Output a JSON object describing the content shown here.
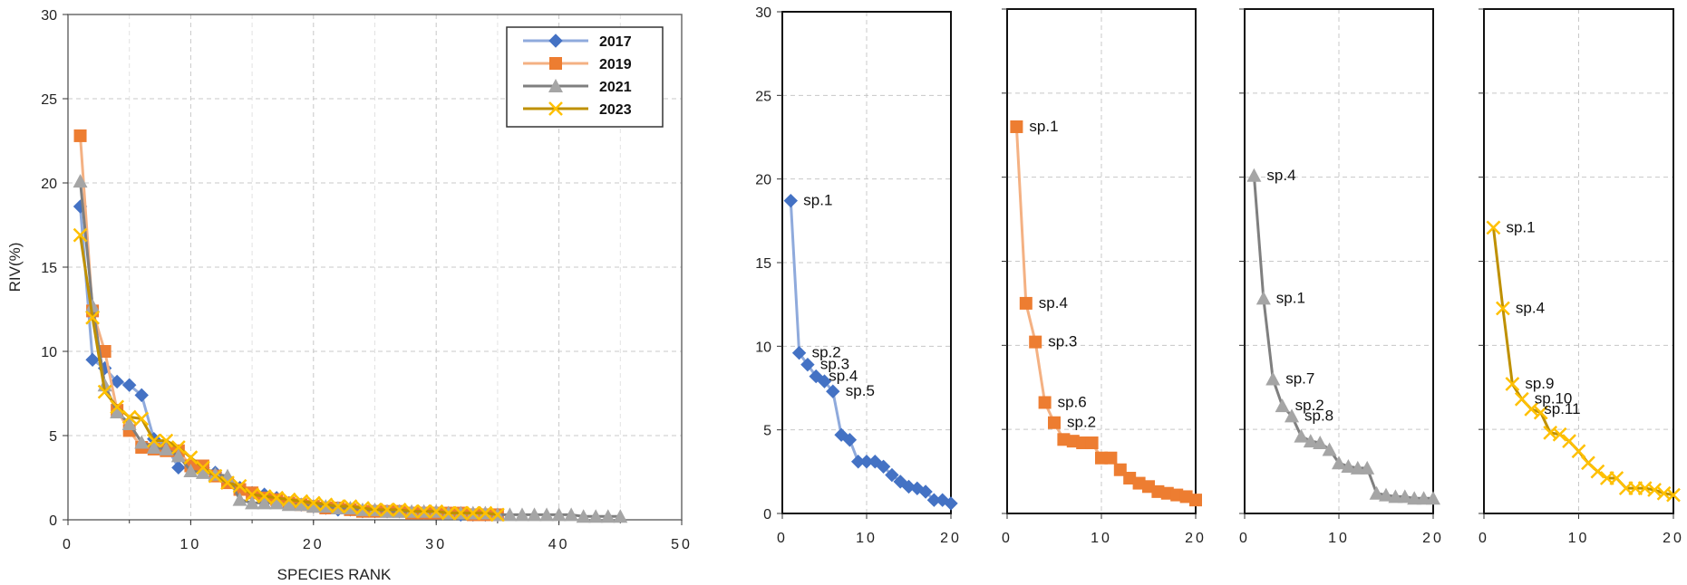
{
  "chart_data": [
    {
      "type": "line",
      "title": "",
      "xlabel": "SPECIES RANK",
      "ylabel": "RIV(%)",
      "xlim": [
        0,
        50
      ],
      "ylim": [
        0,
        30
      ],
      "xticks": [
        0,
        10,
        20,
        30,
        40,
        50
      ],
      "yticks": [
        0,
        5,
        10,
        15,
        20,
        25,
        30
      ],
      "grid": true,
      "legend": "top-right",
      "series": [
        {
          "name": "2017",
          "marker": "diamond",
          "color": "#4472C4",
          "line_color": "#8FAADC",
          "x": [
            1,
            2,
            3,
            4,
            5,
            6,
            7,
            8,
            9,
            10,
            11,
            12,
            13,
            14,
            15,
            16,
            17,
            18,
            19,
            20,
            21,
            22,
            23,
            24,
            25,
            26,
            27,
            28,
            29,
            30,
            31,
            32,
            33,
            34,
            35
          ],
          "y": [
            18.6,
            9.5,
            9.0,
            8.2,
            8.0,
            7.4,
            4.8,
            4.4,
            3.1,
            3.1,
            3.1,
            2.8,
            2.4,
            1.9,
            1.6,
            1.5,
            1.3,
            1.0,
            0.9,
            0.8,
            0.7,
            0.6,
            0.6,
            0.5,
            0.5,
            0.5,
            0.5,
            0.4,
            0.4,
            0.4,
            0.4,
            0.3,
            0.3,
            0.3,
            0.3
          ]
        },
        {
          "name": "2019",
          "marker": "square",
          "color": "#ED7D31",
          "line_color": "#F4B183",
          "x": [
            1,
            2,
            3,
            4,
            5,
            6,
            7,
            8,
            9,
            10,
            11,
            12,
            13,
            14,
            15,
            16,
            17,
            18,
            19,
            20,
            21,
            22,
            23,
            24,
            25,
            26,
            27,
            28,
            29,
            30,
            31,
            32,
            33,
            34,
            35
          ],
          "y": [
            22.8,
            12.4,
            10.0,
            6.5,
            5.3,
            4.3,
            4.2,
            4.1,
            4.1,
            3.2,
            3.2,
            2.6,
            2.2,
            1.8,
            1.6,
            1.3,
            1.2,
            1.0,
            0.9,
            0.8,
            0.7,
            0.7,
            0.6,
            0.5,
            0.5,
            0.5,
            0.5,
            0.4,
            0.4,
            0.4,
            0.4,
            0.4,
            0.3,
            0.3,
            0.3
          ]
        },
        {
          "name": "2021",
          "marker": "triangle",
          "color": "#A5A5A5",
          "line_color": "#7F7F7F",
          "x": [
            1,
            2,
            3,
            4,
            5,
            6,
            7,
            8,
            9,
            10,
            11,
            12,
            13,
            14,
            15,
            16,
            17,
            18,
            19,
            20,
            21,
            22,
            23,
            24,
            25,
            26,
            27,
            28,
            29,
            30,
            31,
            32,
            33,
            34,
            35,
            36,
            37,
            38,
            39,
            40,
            41,
            42,
            43,
            44,
            45
          ],
          "y": [
            20.1,
            12.7,
            8.0,
            6.4,
            5.7,
            4.6,
            4.3,
            4.2,
            3.8,
            2.9,
            2.8,
            2.7,
            2.6,
            1.2,
            1.0,
            1.0,
            1.0,
            0.9,
            0.9,
            0.8,
            0.8,
            0.7,
            0.7,
            0.6,
            0.6,
            0.5,
            0.5,
            0.5,
            0.5,
            0.5,
            0.4,
            0.4,
            0.4,
            0.4,
            0.3,
            0.3,
            0.3,
            0.3,
            0.3,
            0.3,
            0.3,
            0.2,
            0.2,
            0.2,
            0.2
          ]
        },
        {
          "name": "2023",
          "marker": "x",
          "color": "#FFC000",
          "line_color": "#BF9000",
          "x": [
            1,
            2,
            3,
            4,
            5,
            6,
            7,
            8,
            9,
            10,
            11,
            12,
            13,
            14,
            15,
            16,
            17,
            18,
            19,
            20,
            21,
            22,
            23,
            24,
            25,
            26,
            27,
            28,
            29,
            30,
            31,
            32,
            33,
            34,
            35
          ],
          "y": [
            16.9,
            12.0,
            7.6,
            6.7,
            6.1,
            6.0,
            4.7,
            4.7,
            4.3,
            3.7,
            3.1,
            2.6,
            2.2,
            2.0,
            1.5,
            1.4,
            1.3,
            1.2,
            1.1,
            1.0,
            0.9,
            0.8,
            0.8,
            0.7,
            0.6,
            0.6,
            0.6,
            0.5,
            0.5,
            0.5,
            0.4,
            0.4,
            0.4,
            0.4,
            0.3
          ]
        }
      ]
    },
    {
      "type": "line",
      "xlim": [
        0,
        20
      ],
      "ylim": [
        0,
        30
      ],
      "xticks": [
        0,
        10,
        20
      ],
      "yticks": [
        0,
        5,
        10,
        15,
        20,
        25,
        30
      ],
      "grid": true,
      "series": [
        {
          "marker": "diamond",
          "color": "#4472C4",
          "line_color": "#8FAADC",
          "x": [
            1,
            2,
            3,
            4,
            5,
            6,
            7,
            8,
            9,
            10,
            11,
            12,
            13,
            14,
            15,
            16,
            17,
            18,
            19,
            20
          ],
          "y": [
            18.7,
            9.6,
            8.9,
            8.2,
            7.9,
            7.3,
            4.7,
            4.4,
            3.1,
            3.1,
            3.1,
            2.8,
            2.3,
            1.9,
            1.6,
            1.5,
            1.3,
            0.8,
            0.8,
            0.6
          ]
        }
      ],
      "annotations": [
        {
          "text": "sp.1",
          "x": 1,
          "y": 18.7
        },
        {
          "text": "sp.2",
          "x": 2,
          "y": 9.6
        },
        {
          "text": "sp.3",
          "x": 3,
          "y": 8.9
        },
        {
          "text": "sp.4",
          "x": 4,
          "y": 8.2
        },
        {
          "text": "sp.5",
          "x": 6,
          "y": 7.3
        }
      ]
    },
    {
      "type": "line",
      "xlim": [
        0,
        20
      ],
      "ylim": [
        0,
        30
      ],
      "xticks": [
        0,
        10,
        20
      ],
      "grid": true,
      "series": [
        {
          "marker": "square",
          "color": "#ED7D31",
          "line_color": "#F4B183",
          "x": [
            1,
            2,
            3,
            4,
            5,
            6,
            7,
            8,
            9,
            10,
            11,
            12,
            13,
            14,
            15,
            16,
            17,
            18,
            19,
            20
          ],
          "y": [
            23.0,
            12.5,
            10.2,
            6.6,
            5.4,
            4.4,
            4.3,
            4.2,
            4.2,
            3.3,
            3.3,
            2.6,
            2.1,
            1.8,
            1.6,
            1.3,
            1.2,
            1.1,
            1.0,
            0.8
          ]
        }
      ],
      "annotations": [
        {
          "text": "sp.1",
          "x": 1,
          "y": 23.0
        },
        {
          "text": "sp.4",
          "x": 2,
          "y": 12.5
        },
        {
          "text": "sp.3",
          "x": 3,
          "y": 10.2
        },
        {
          "text": "sp.6",
          "x": 4,
          "y": 6.6
        },
        {
          "text": "sp.2",
          "x": 5,
          "y": 5.4
        }
      ]
    },
    {
      "type": "line",
      "xlim": [
        0,
        20
      ],
      "ylim": [
        0,
        30
      ],
      "xticks": [
        0,
        10,
        20
      ],
      "grid": true,
      "series": [
        {
          "marker": "triangle",
          "color": "#A5A5A5",
          "line_color": "#7F7F7F",
          "x": [
            1,
            2,
            3,
            4,
            5,
            6,
            7,
            8,
            9,
            10,
            11,
            12,
            13,
            14,
            15,
            16,
            17,
            18,
            19,
            20
          ],
          "y": [
            20.1,
            12.8,
            8.0,
            6.4,
            5.8,
            4.6,
            4.3,
            4.2,
            3.8,
            3.0,
            2.8,
            2.7,
            2.7,
            1.2,
            1.1,
            1.0,
            1.0,
            0.9,
            0.9,
            0.9
          ]
        }
      ],
      "annotations": [
        {
          "text": "sp.4",
          "x": 1,
          "y": 20.1
        },
        {
          "text": "sp.1",
          "x": 2,
          "y": 12.8
        },
        {
          "text": "sp.7",
          "x": 3,
          "y": 8.0
        },
        {
          "text": "sp.2",
          "x": 4,
          "y": 6.4
        },
        {
          "text": "sp.8",
          "x": 5,
          "y": 5.8
        }
      ]
    },
    {
      "type": "line",
      "xlim": [
        0,
        20
      ],
      "ylim": [
        0,
        30
      ],
      "xticks": [
        0,
        10,
        20
      ],
      "grid": true,
      "series": [
        {
          "marker": "x",
          "color": "#FFC000",
          "line_color": "#BF9000",
          "x": [
            1,
            2,
            3,
            4,
            5,
            6,
            7,
            8,
            9,
            10,
            11,
            12,
            13,
            14,
            15,
            16,
            17,
            18,
            19,
            20
          ],
          "y": [
            17.0,
            12.2,
            7.7,
            6.8,
            6.2,
            6.0,
            4.8,
            4.7,
            4.3,
            3.7,
            3.0,
            2.5,
            2.1,
            2.1,
            1.5,
            1.5,
            1.5,
            1.4,
            1.2,
            1.1
          ]
        }
      ],
      "annotations": [
        {
          "text": "sp.1",
          "x": 1,
          "y": 17.0
        },
        {
          "text": "sp.4",
          "x": 2,
          "y": 12.2
        },
        {
          "text": "sp.9",
          "x": 3,
          "y": 7.7
        },
        {
          "text": "sp.10",
          "x": 4,
          "y": 6.8
        },
        {
          "text": "sp.11",
          "x": 5,
          "y": 6.2
        }
      ]
    }
  ]
}
